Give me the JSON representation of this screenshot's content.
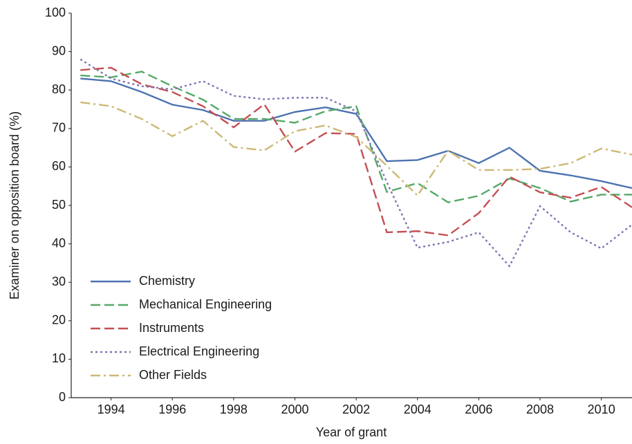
{
  "chart_data": {
    "type": "line",
    "x_label": "Year of grant",
    "y_label": "Examiner on opposition board (%)",
    "x": [
      1993,
      1994,
      1995,
      1996,
      1997,
      1998,
      1999,
      2000,
      2001,
      2002,
      2003,
      2004,
      2005,
      2006,
      2007,
      2008,
      2009,
      2010,
      2011
    ],
    "series": [
      {
        "name": "Chemistry",
        "color": "#4c72b0",
        "dash": "solid",
        "values": [
          83,
          82.3,
          79.5,
          76.2,
          74.8,
          72,
          72,
          74.3,
          75.5,
          73.8,
          61.5,
          61.8,
          64.2,
          61,
          65,
          59,
          57.8,
          56.3,
          54.5
        ]
      },
      {
        "name": "Mechanical Engineering",
        "color": "#55a868",
        "dash": "dashed",
        "values": [
          83.8,
          83.3,
          84.8,
          81,
          77.5,
          72.5,
          72.5,
          71.5,
          74.5,
          75.8,
          53.5,
          55.8,
          50.8,
          52.5,
          57,
          54.5,
          51,
          52.8,
          52.8
        ]
      },
      {
        "name": "Instruments",
        "color": "#c44e52",
        "dash": "dashed",
        "values": [
          85.2,
          85.8,
          81.5,
          79.5,
          75.8,
          70.3,
          76.3,
          64,
          68.8,
          68.6,
          43,
          43.3,
          42.2,
          48,
          57.5,
          53.4,
          52,
          54.8,
          49.5
        ]
      },
      {
        "name": "Electrical Engineering",
        "color": "#8172b2",
        "dash": "dotted",
        "values": [
          88,
          83,
          81,
          80.2,
          82.3,
          78.5,
          77.6,
          78,
          78,
          74.5,
          56,
          39,
          40.5,
          43,
          34.2,
          49.8,
          43,
          38.8,
          45
        ]
      },
      {
        "name": "Other Fields",
        "color": "#ccb974",
        "dash": "dashdot",
        "values": [
          76.8,
          75.8,
          72.5,
          68,
          72,
          65.2,
          64.3,
          69.3,
          70.8,
          67.8,
          60.3,
          52.6,
          64.2,
          59.2,
          59.2,
          59.5,
          61,
          64.8,
          63.2
        ]
      }
    ],
    "xlim": [
      1992.7,
      2011
    ],
    "ylim": [
      0,
      100
    ],
    "xticks": [
      1994,
      1996,
      1998,
      2000,
      2002,
      2004,
      2006,
      2008,
      2010
    ],
    "yticks": [
      0,
      10,
      20,
      30,
      40,
      50,
      60,
      70,
      80,
      90,
      100
    ],
    "grid": false,
    "legend": "lower left"
  }
}
